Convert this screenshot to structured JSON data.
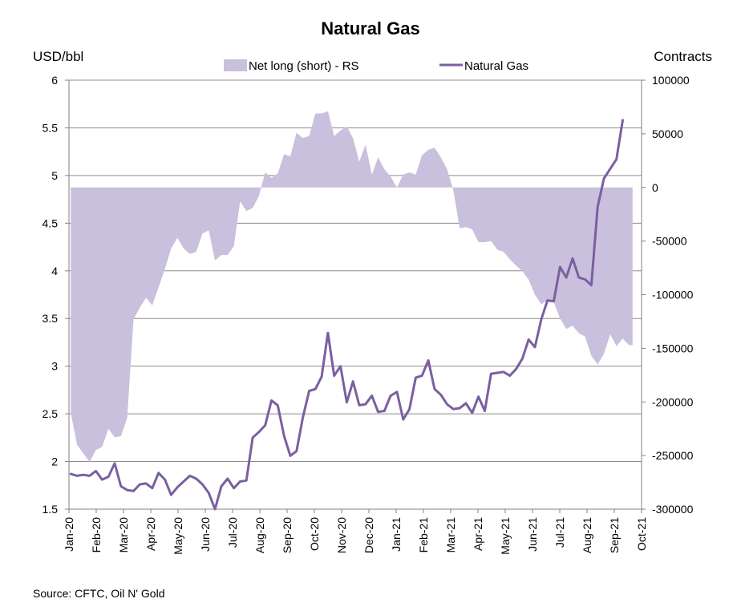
{
  "chart_data": {
    "type": "area+line",
    "title": "Natural Gas",
    "y_left_label": "USD/bbl",
    "y_right_label": "Contracts",
    "y_left_range": [
      1.5,
      6
    ],
    "y_right_range": [
      -300000,
      100000
    ],
    "y_left_ticks": [
      "6",
      "5.5",
      "5",
      "4.5",
      "4",
      "3.5",
      "3",
      "2.5",
      "2",
      "1.5"
    ],
    "y_right_ticks": [
      "100000",
      "50000",
      "0",
      "-50000",
      "-100000",
      "-150000",
      "-200000",
      "-250000",
      "-300000"
    ],
    "x_ticks": [
      "Jan-20",
      "Feb-20",
      "Mar-20",
      "Apr-20",
      "May-20",
      "Jun-20",
      "Jul-20",
      "Aug-20",
      "Sep-20",
      "Oct-20",
      "Nov-20",
      "Dec-20",
      "Jan-21",
      "Feb-21",
      "Mar-21",
      "Apr-21",
      "May-21",
      "Jun-21",
      "Jul-21",
      "Aug-21",
      "Sep-21",
      "Oct-21"
    ],
    "x_start": "2020-01-01",
    "x_end": "2021-10-01",
    "legend_position": "top-center",
    "grid": "horizontal",
    "series": [
      {
        "name": "Net long (short) - RS",
        "kind": "area",
        "axis": "right",
        "color": "#c8c0dc",
        "points": [
          [
            "2020-01-03",
            -210000
          ],
          [
            "2020-01-10",
            -240000
          ],
          [
            "2020-01-17",
            -248000
          ],
          [
            "2020-01-24",
            -256000
          ],
          [
            "2020-01-31",
            -245000
          ],
          [
            "2020-02-07",
            -242000
          ],
          [
            "2020-02-14",
            -225000
          ],
          [
            "2020-02-21",
            -233000
          ],
          [
            "2020-02-28",
            -232000
          ],
          [
            "2020-03-06",
            -215000
          ],
          [
            "2020-03-13",
            -123000
          ],
          [
            "2020-03-20",
            -112000
          ],
          [
            "2020-03-27",
            -103000
          ],
          [
            "2020-04-03",
            -110000
          ],
          [
            "2020-04-10",
            -93000
          ],
          [
            "2020-04-17",
            -76000
          ],
          [
            "2020-04-24",
            -57000
          ],
          [
            "2020-05-01",
            -47000
          ],
          [
            "2020-05-08",
            -57000
          ],
          [
            "2020-05-15",
            -62000
          ],
          [
            "2020-05-22",
            -60000
          ],
          [
            "2020-05-29",
            -43000
          ],
          [
            "2020-06-05",
            -40000
          ],
          [
            "2020-06-12",
            -68000
          ],
          [
            "2020-06-19",
            -63000
          ],
          [
            "2020-06-26",
            -63000
          ],
          [
            "2020-07-03",
            -55000
          ],
          [
            "2020-07-10",
            -13000
          ],
          [
            "2020-07-17",
            -22000
          ],
          [
            "2020-07-24",
            -19000
          ],
          [
            "2020-07-31",
            -8000
          ],
          [
            "2020-08-07",
            14000
          ],
          [
            "2020-08-14",
            9000
          ],
          [
            "2020-08-21",
            13000
          ],
          [
            "2020-08-28",
            31000
          ],
          [
            "2020-09-04",
            29000
          ],
          [
            "2020-09-11",
            51000
          ],
          [
            "2020-09-18",
            46000
          ],
          [
            "2020-09-25",
            48000
          ],
          [
            "2020-10-02",
            69000
          ],
          [
            "2020-10-09",
            69000
          ],
          [
            "2020-10-16",
            71000
          ],
          [
            "2020-10-23",
            48000
          ],
          [
            "2020-10-30",
            53000
          ],
          [
            "2020-11-06",
            57000
          ],
          [
            "2020-11-13",
            46000
          ],
          [
            "2020-11-20",
            24000
          ],
          [
            "2020-11-27",
            40000
          ],
          [
            "2020-12-04",
            12000
          ],
          [
            "2020-12-11",
            28000
          ],
          [
            "2020-12-18",
            17000
          ],
          [
            "2020-12-25",
            10000
          ],
          [
            "2021-01-01",
            0
          ],
          [
            "2021-01-08",
            12000
          ],
          [
            "2021-01-15",
            14000
          ],
          [
            "2021-01-22",
            12000
          ],
          [
            "2021-01-29",
            30000
          ],
          [
            "2021-02-05",
            35000
          ],
          [
            "2021-02-12",
            37000
          ],
          [
            "2021-02-19",
            28000
          ],
          [
            "2021-02-26",
            17000
          ],
          [
            "2021-03-05",
            -3000
          ],
          [
            "2021-03-12",
            -38000
          ],
          [
            "2021-03-19",
            -37000
          ],
          [
            "2021-03-26",
            -39000
          ],
          [
            "2021-04-02",
            -51000
          ],
          [
            "2021-04-09",
            -51000
          ],
          [
            "2021-04-16",
            -50000
          ],
          [
            "2021-04-23",
            -58000
          ],
          [
            "2021-04-30",
            -60000
          ],
          [
            "2021-05-07",
            -67000
          ],
          [
            "2021-05-14",
            -73000
          ],
          [
            "2021-05-21",
            -78000
          ],
          [
            "2021-05-28",
            -86000
          ],
          [
            "2021-06-04",
            -100000
          ],
          [
            "2021-06-11",
            -109000
          ],
          [
            "2021-06-18",
            -105000
          ],
          [
            "2021-06-25",
            -107000
          ],
          [
            "2021-07-02",
            -122000
          ],
          [
            "2021-07-09",
            -132000
          ],
          [
            "2021-07-16",
            -129000
          ],
          [
            "2021-07-23",
            -136000
          ],
          [
            "2021-07-30",
            -139000
          ],
          [
            "2021-08-06",
            -157000
          ],
          [
            "2021-08-13",
            -165000
          ],
          [
            "2021-08-20",
            -155000
          ],
          [
            "2021-08-27",
            -137000
          ],
          [
            "2021-09-03",
            -148000
          ],
          [
            "2021-09-10",
            -141000
          ],
          [
            "2021-09-17",
            -147000
          ],
          [
            "2021-09-21",
            -147000
          ]
        ]
      },
      {
        "name": "Natural Gas",
        "kind": "line",
        "axis": "left",
        "color": "#7b5fa0",
        "points": [
          [
            "2020-01-03",
            1.87
          ],
          [
            "2020-01-10",
            1.85
          ],
          [
            "2020-01-17",
            1.86
          ],
          [
            "2020-01-24",
            1.85
          ],
          [
            "2020-01-31",
            1.9
          ],
          [
            "2020-02-07",
            1.81
          ],
          [
            "2020-02-14",
            1.84
          ],
          [
            "2020-02-21",
            1.98
          ],
          [
            "2020-02-28",
            1.74
          ],
          [
            "2020-03-06",
            1.7
          ],
          [
            "2020-03-13",
            1.69
          ],
          [
            "2020-03-20",
            1.76
          ],
          [
            "2020-03-27",
            1.77
          ],
          [
            "2020-04-03",
            1.72
          ],
          [
            "2020-04-10",
            1.88
          ],
          [
            "2020-04-17",
            1.81
          ],
          [
            "2020-04-24",
            1.65
          ],
          [
            "2020-05-01",
            1.73
          ],
          [
            "2020-05-08",
            1.79
          ],
          [
            "2020-05-15",
            1.85
          ],
          [
            "2020-05-22",
            1.82
          ],
          [
            "2020-05-29",
            1.76
          ],
          [
            "2020-06-05",
            1.67
          ],
          [
            "2020-06-12",
            1.5
          ],
          [
            "2020-06-19",
            1.74
          ],
          [
            "2020-06-26",
            1.82
          ],
          [
            "2020-07-03",
            1.72
          ],
          [
            "2020-07-10",
            1.79
          ],
          [
            "2020-07-17",
            1.8
          ],
          [
            "2020-07-24",
            2.25
          ],
          [
            "2020-07-31",
            2.31
          ],
          [
            "2020-08-07",
            2.38
          ],
          [
            "2020-08-14",
            2.64
          ],
          [
            "2020-08-21",
            2.59
          ],
          [
            "2020-08-28",
            2.27
          ],
          [
            "2020-09-04",
            2.06
          ],
          [
            "2020-09-11",
            2.11
          ],
          [
            "2020-09-18",
            2.46
          ],
          [
            "2020-09-25",
            2.74
          ],
          [
            "2020-10-02",
            2.76
          ],
          [
            "2020-10-09",
            2.89
          ],
          [
            "2020-10-16",
            3.35
          ],
          [
            "2020-10-23",
            2.9
          ],
          [
            "2020-10-30",
            3.0
          ],
          [
            "2020-11-06",
            2.62
          ],
          [
            "2020-11-13",
            2.84
          ],
          [
            "2020-11-20",
            2.59
          ],
          [
            "2020-11-27",
            2.6
          ],
          [
            "2020-12-04",
            2.69
          ],
          [
            "2020-12-11",
            2.52
          ],
          [
            "2020-12-18",
            2.53
          ],
          [
            "2020-12-25",
            2.69
          ],
          [
            "2021-01-01",
            2.73
          ],
          [
            "2021-01-08",
            2.44
          ],
          [
            "2021-01-15",
            2.55
          ],
          [
            "2021-01-22",
            2.88
          ],
          [
            "2021-01-29",
            2.9
          ],
          [
            "2021-02-05",
            3.06
          ],
          [
            "2021-02-12",
            2.76
          ],
          [
            "2021-02-19",
            2.7
          ],
          [
            "2021-02-26",
            2.6
          ],
          [
            "2021-03-05",
            2.55
          ],
          [
            "2021-03-12",
            2.56
          ],
          [
            "2021-03-19",
            2.61
          ],
          [
            "2021-03-26",
            2.51
          ],
          [
            "2021-04-02",
            2.68
          ],
          [
            "2021-04-09",
            2.53
          ],
          [
            "2021-04-16",
            2.92
          ],
          [
            "2021-04-23",
            2.93
          ],
          [
            "2021-04-30",
            2.94
          ],
          [
            "2021-05-07",
            2.9
          ],
          [
            "2021-05-14",
            2.97
          ],
          [
            "2021-05-21",
            3.08
          ],
          [
            "2021-05-28",
            3.28
          ],
          [
            "2021-06-04",
            3.2
          ],
          [
            "2021-06-11",
            3.49
          ],
          [
            "2021-06-18",
            3.69
          ],
          [
            "2021-06-25",
            3.68
          ],
          [
            "2021-07-02",
            4.04
          ],
          [
            "2021-07-09",
            3.93
          ],
          [
            "2021-07-16",
            4.13
          ],
          [
            "2021-07-23",
            3.93
          ],
          [
            "2021-07-30",
            3.91
          ],
          [
            "2021-08-06",
            3.85
          ],
          [
            "2021-08-13",
            4.67
          ],
          [
            "2021-08-20",
            4.97
          ],
          [
            "2021-08-27",
            5.07
          ],
          [
            "2021-09-03",
            5.17
          ],
          [
            "2021-09-10",
            5.58
          ]
        ]
      }
    ]
  },
  "source": "Source: CFTC, Oil N' Gold"
}
